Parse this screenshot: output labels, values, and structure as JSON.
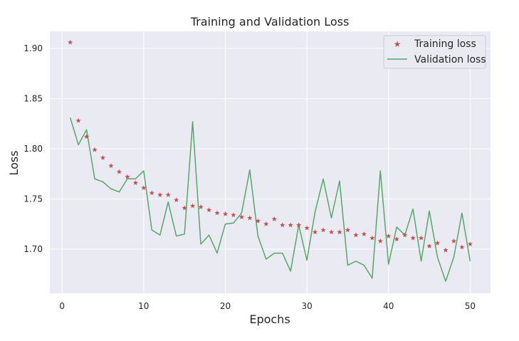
{
  "chart_data": {
    "type": "line",
    "title": "Training and Validation Loss",
    "xlabel": "Epochs",
    "ylabel": "Loss",
    "xlim": [
      -1.5,
      52.5
    ],
    "ylim": [
      1.656,
      1.917
    ],
    "xticks": [
      0,
      10,
      20,
      30,
      40,
      50
    ],
    "yticks": [
      1.7,
      1.75,
      1.8,
      1.85,
      1.9
    ],
    "xtick_labels": [
      "0",
      "10",
      "20",
      "30",
      "40",
      "50"
    ],
    "ytick_labels": [
      "1.70",
      "1.75",
      "1.80",
      "1.85",
      "1.90"
    ],
    "grid": true,
    "legend_position": "top-right",
    "x": [
      1,
      2,
      3,
      4,
      5,
      6,
      7,
      8,
      9,
      10,
      11,
      12,
      13,
      14,
      15,
      16,
      17,
      18,
      19,
      20,
      21,
      22,
      23,
      24,
      25,
      26,
      27,
      28,
      29,
      30,
      31,
      32,
      33,
      34,
      35,
      36,
      37,
      38,
      39,
      40,
      41,
      42,
      43,
      44,
      45,
      46,
      47,
      48,
      49,
      50
    ],
    "series": [
      {
        "name": "Training loss",
        "style": "markers",
        "marker": "star",
        "color": "#c44e52",
        "values": [
          1.906,
          1.828,
          1.812,
          1.799,
          1.791,
          1.783,
          1.777,
          1.772,
          1.766,
          1.761,
          1.756,
          1.754,
          1.754,
          1.749,
          1.741,
          1.743,
          1.742,
          1.739,
          1.736,
          1.735,
          1.734,
          1.732,
          1.731,
          1.728,
          1.725,
          1.73,
          1.724,
          1.724,
          1.724,
          1.721,
          1.717,
          1.719,
          1.717,
          1.717,
          1.719,
          1.714,
          1.715,
          1.711,
          1.708,
          1.713,
          1.71,
          1.714,
          1.711,
          1.711,
          1.703,
          1.706,
          1.699,
          1.708,
          1.702,
          1.705
        ]
      },
      {
        "name": "Validation loss",
        "style": "line",
        "color": "#55a868",
        "values": [
          1.831,
          1.804,
          1.819,
          1.77,
          1.767,
          1.76,
          1.757,
          1.77,
          1.77,
          1.778,
          1.719,
          1.714,
          1.747,
          1.713,
          1.715,
          1.827,
          1.705,
          1.714,
          1.696,
          1.725,
          1.726,
          1.736,
          1.779,
          1.713,
          1.69,
          1.696,
          1.696,
          1.678,
          1.724,
          1.689,
          1.737,
          1.77,
          1.731,
          1.768,
          1.684,
          1.688,
          1.684,
          1.671,
          1.778,
          1.685,
          1.722,
          1.714,
          1.74,
          1.688,
          1.738,
          1.692,
          1.668,
          1.692,
          1.736,
          1.688
        ]
      }
    ]
  }
}
